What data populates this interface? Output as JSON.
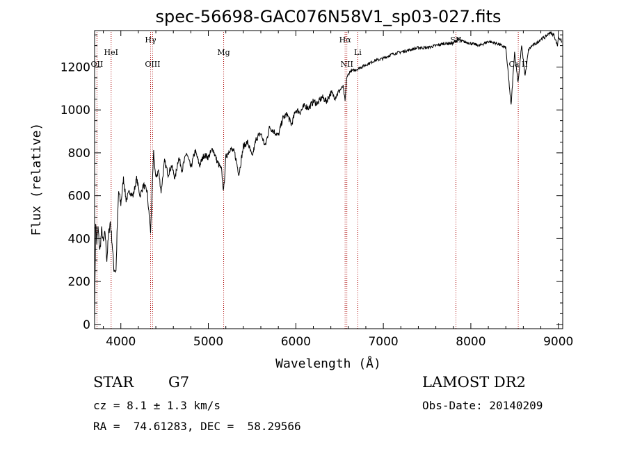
{
  "chart_data": {
    "type": "line",
    "title": "spec-56698-GAC076N58V1_sp03-027.fits",
    "xlabel": "Wavelength (Å)",
    "ylabel": "Flux (relative)",
    "xlim": [
      3700,
      9050
    ],
    "ylim": [
      -20,
      1370
    ],
    "x_ticks": [
      4000,
      5000,
      6000,
      7000,
      8000,
      9000
    ],
    "y_ticks": [
      0,
      200,
      400,
      600,
      800,
      1000,
      1200
    ],
    "grid": false,
    "line_color": "#000000",
    "marker_color": "#aa0000",
    "series": [
      {
        "values_anchor": [
          [
            3700,
            20
          ],
          [
            3712,
            480
          ],
          [
            3725,
            380
          ],
          [
            3740,
            450
          ],
          [
            3760,
            340
          ],
          [
            3780,
            440
          ],
          [
            3800,
            380
          ],
          [
            3820,
            430
          ],
          [
            3840,
            300
          ],
          [
            3860,
            420
          ],
          [
            3880,
            480
          ],
          [
            3900,
            380
          ],
          [
            3920,
            260
          ],
          [
            3945,
            250
          ],
          [
            3960,
            470
          ],
          [
            3975,
            620
          ],
          [
            4000,
            560
          ],
          [
            4030,
            680
          ],
          [
            4060,
            580
          ],
          [
            4100,
            620
          ],
          [
            4140,
            600
          ],
          [
            4180,
            680
          ],
          [
            4220,
            600
          ],
          [
            4260,
            650
          ],
          [
            4300,
            620
          ],
          [
            4325,
            500
          ],
          [
            4340,
            430
          ],
          [
            4355,
            600
          ],
          [
            4375,
            800
          ],
          [
            4400,
            680
          ],
          [
            4430,
            720
          ],
          [
            4460,
            620
          ],
          [
            4500,
            760
          ],
          [
            4540,
            700
          ],
          [
            4580,
            740
          ],
          [
            4620,
            680
          ],
          [
            4660,
            780
          ],
          [
            4700,
            720
          ],
          [
            4750,
            800
          ],
          [
            4800,
            730
          ],
          [
            4850,
            810
          ],
          [
            4900,
            740
          ],
          [
            4950,
            790
          ],
          [
            5000,
            780
          ],
          [
            5050,
            820
          ],
          [
            5100,
            760
          ],
          [
            5150,
            720
          ],
          [
            5175,
            620
          ],
          [
            5200,
            780
          ],
          [
            5250,
            820
          ],
          [
            5300,
            800
          ],
          [
            5350,
            700
          ],
          [
            5400,
            830
          ],
          [
            5450,
            850
          ],
          [
            5500,
            780
          ],
          [
            5550,
            870
          ],
          [
            5600,
            890
          ],
          [
            5650,
            830
          ],
          [
            5700,
            920
          ],
          [
            5750,
            900
          ],
          [
            5800,
            880
          ],
          [
            5850,
            960
          ],
          [
            5900,
            980
          ],
          [
            5950,
            930
          ],
          [
            6000,
            1000
          ],
          [
            6050,
            990
          ],
          [
            6100,
            1020
          ],
          [
            6150,
            1010
          ],
          [
            6200,
            1040
          ],
          [
            6250,
            1030
          ],
          [
            6300,
            1060
          ],
          [
            6350,
            1040
          ],
          [
            6400,
            1080
          ],
          [
            6450,
            1060
          ],
          [
            6500,
            1090
          ],
          [
            6540,
            1110
          ],
          [
            6563,
            1040
          ],
          [
            6580,
            1150
          ],
          [
            6620,
            1180
          ],
          [
            6700,
            1190
          ],
          [
            6800,
            1210
          ],
          [
            6900,
            1230
          ],
          [
            7000,
            1240
          ],
          [
            7100,
            1260
          ],
          [
            7200,
            1270
          ],
          [
            7300,
            1280
          ],
          [
            7400,
            1290
          ],
          [
            7500,
            1290
          ],
          [
            7600,
            1300
          ],
          [
            7700,
            1310
          ],
          [
            7800,
            1310
          ],
          [
            7850,
            1330
          ],
          [
            7900,
            1320
          ],
          [
            8000,
            1310
          ],
          [
            8100,
            1300
          ],
          [
            8200,
            1320
          ],
          [
            8300,
            1310
          ],
          [
            8400,
            1290
          ],
          [
            8460,
            1020
          ],
          [
            8500,
            1270
          ],
          [
            8540,
            1130
          ],
          [
            8580,
            1300
          ],
          [
            8620,
            1160
          ],
          [
            8660,
            1280
          ],
          [
            8700,
            1300
          ],
          [
            8750,
            1310
          ],
          [
            8800,
            1330
          ],
          [
            8850,
            1340
          ],
          [
            8900,
            1360
          ],
          [
            8950,
            1350
          ],
          [
            8990,
            1300
          ],
          [
            9000,
            1340
          ],
          [
            9040,
            1320
          ]
        ]
      }
    ],
    "line_markers": [
      {
        "label": "OII",
        "x": 3727,
        "row": 2
      },
      {
        "label": "HeI",
        "x": 3889,
        "row": 1
      },
      {
        "label": "Hγ",
        "x": 4340,
        "row": 0
      },
      {
        "label": "OIII",
        "x": 4363,
        "row": 2
      },
      {
        "label": "Mg",
        "x": 5175,
        "row": 1
      },
      {
        "label": "Hα",
        "x": 6563,
        "row": 0
      },
      {
        "label": "NII",
        "x": 6583,
        "row": 2
      },
      {
        "label": "Li",
        "x": 6708,
        "row": 1
      },
      {
        "label": "SII",
        "x": 7830,
        "row": 0
      },
      {
        "label": "Ca II",
        "x": 8542,
        "row": 2
      }
    ]
  },
  "info": {
    "class": "STAR",
    "subclass": "G7",
    "cz": "cz = 8.1 ± 1.3 km/s",
    "coords": "RA =  74.61283, DEC =  58.29566",
    "survey": "LAMOST DR2",
    "obs_date": "Obs-Date: 20140209"
  }
}
